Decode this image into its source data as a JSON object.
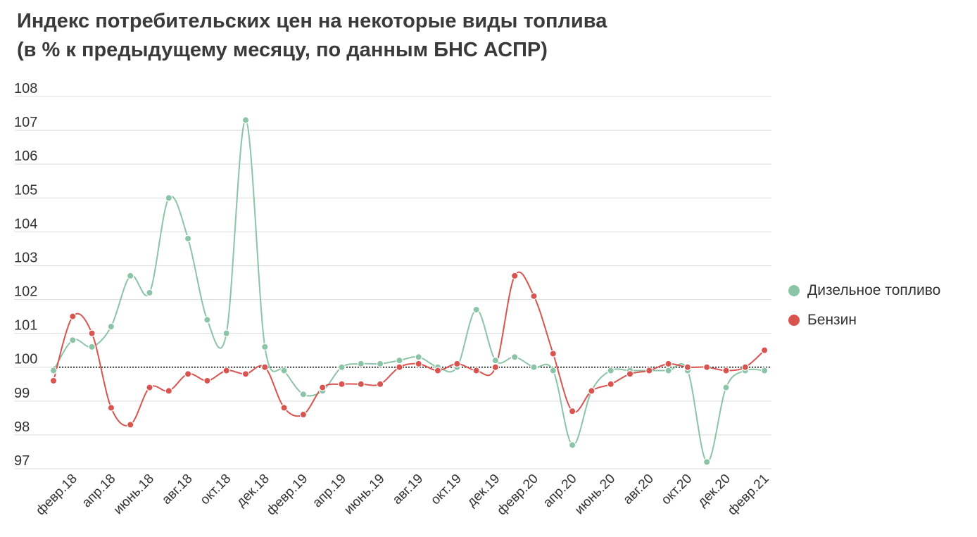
{
  "chart_data": {
    "type": "line",
    "title": "Индекс потребительских цен на некоторые виды топлива",
    "subtitle": "(в % к предыдущему месяцу, по данным БНС АСПР)",
    "xlabel": "",
    "ylabel": "",
    "ylim": [
      97,
      108
    ],
    "yticks": [
      97,
      98,
      99,
      100,
      101,
      102,
      103,
      104,
      105,
      106,
      107,
      108
    ],
    "reference_line": 100,
    "grid": true,
    "legend_position": "right",
    "x": [
      "янв.18",
      "февр.18",
      "март.18",
      "апр.18",
      "май.18",
      "июнь.18",
      "июль.18",
      "авг.18",
      "сент.18",
      "окт.18",
      "нояб.18",
      "дек.18",
      "янв.19",
      "февр.19",
      "март.19",
      "апр.19",
      "май.19",
      "июнь.19",
      "июль.19",
      "авг.19",
      "сент.19",
      "окт.19",
      "нояб.19",
      "дек.19",
      "янв.20",
      "февр.20",
      "март.20",
      "апр.20",
      "май.20",
      "июнь.20",
      "июль.20",
      "авг.20",
      "сент.20",
      "окт.20",
      "нояб.20",
      "дек.20",
      "янв.21",
      "февр.21"
    ],
    "x_tick_labels": [
      "февр.18",
      "апр.18",
      "июнь.18",
      "авг.18",
      "окт.18",
      "дек.18",
      "февр.19",
      "апр.19",
      "июнь.19",
      "авг.19",
      "окт.19",
      "дек.19",
      "февр.20",
      "апр.20",
      "июнь.20",
      "авг.20",
      "окт.20",
      "дек.20",
      "февр.21"
    ],
    "series": [
      {
        "name": "Дизельное топливо",
        "color": "#8cc4a8",
        "values": [
          99.9,
          100.8,
          100.6,
          101.2,
          102.7,
          102.2,
          105.0,
          103.8,
          101.4,
          101.0,
          107.3,
          100.6,
          99.9,
          99.2,
          99.3,
          100.0,
          100.1,
          100.1,
          100.2,
          100.3,
          100.0,
          100.0,
          101.7,
          100.2,
          100.3,
          100.0,
          99.9,
          97.7,
          99.3,
          99.9,
          99.9,
          99.9,
          99.9,
          99.9,
          97.2,
          99.4,
          99.9,
          99.9
        ]
      },
      {
        "name": "Бензин",
        "color": "#d9534f",
        "values": [
          99.6,
          101.5,
          101.0,
          98.8,
          98.3,
          99.4,
          99.3,
          99.8,
          99.6,
          99.9,
          99.8,
          100.0,
          98.8,
          98.6,
          99.4,
          99.5,
          99.5,
          99.5,
          100.0,
          100.1,
          99.9,
          100.1,
          99.9,
          100.0,
          102.7,
          102.1,
          100.4,
          98.7,
          99.3,
          99.5,
          99.8,
          99.9,
          100.1,
          100.0,
          100.0,
          99.9,
          100.0,
          100.5
        ]
      }
    ]
  }
}
